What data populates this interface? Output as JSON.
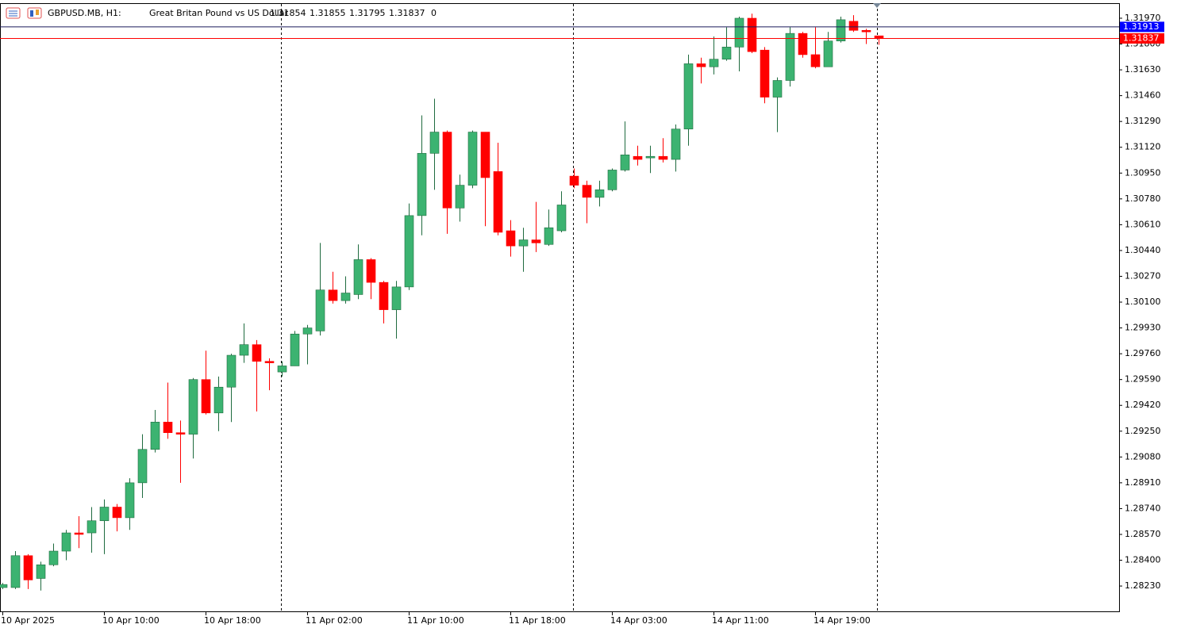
{
  "chart_data": {
    "type": "candlestick",
    "title": "GBPUSD.MB, H1:",
    "subtitle": "Great Britan Pound vs US Dollar",
    "spread": 0,
    "categories": [
      "10 Apr 2025",
      null,
      null,
      null,
      null,
      null,
      null,
      null,
      "10 Apr 10:00",
      null,
      null,
      null,
      null,
      null,
      null,
      null,
      "10 Apr 18:00",
      null,
      null,
      null,
      null,
      null,
      null,
      null,
      "11 Apr 02:00",
      null,
      null,
      null,
      null,
      null,
      null,
      null,
      "11 Apr 10:00",
      null,
      null,
      null,
      null,
      null,
      null,
      null,
      "11 Apr 18:00",
      null,
      null,
      null,
      null,
      null,
      null,
      null,
      "14 Apr 03:00",
      null,
      null,
      null,
      null,
      null,
      null,
      null,
      "14 Apr 11:00",
      null,
      null,
      null,
      null,
      null,
      null,
      null,
      "14 Apr 19:00",
      null,
      null,
      null,
      null,
      null
    ],
    "open": [
      1.2822,
      1.2822,
      1.2843,
      1.2828,
      1.2837,
      1.2846,
      1.2858,
      1.2858,
      1.2866,
      1.2875,
      1.2868,
      1.2891,
      1.2913,
      1.2931,
      1.2924,
      1.2923,
      1.2959,
      1.2937,
      1.2954,
      1.2975,
      1.2982,
      1.2971,
      1.2964,
      1.2968,
      1.2989,
      1.2991,
      1.3018,
      1.3011,
      1.3015,
      1.3038,
      1.3023,
      1.3005,
      1.302,
      1.3067,
      1.3108,
      1.3122,
      1.3072,
      1.3087,
      1.3122,
      1.3096,
      1.3057,
      1.3047,
      1.3051,
      1.3048,
      1.3057,
      1.3093,
      1.3087,
      1.3079,
      1.3084,
      1.3097,
      1.3106,
      1.3105,
      1.3106,
      1.3104,
      1.3124,
      1.3167,
      1.3165,
      1.317,
      1.3178,
      1.3197,
      1.3176,
      1.3145,
      1.3156,
      1.3187,
      1.3173,
      1.3165,
      1.3182,
      1.3195,
      1.3189,
      1.31854
    ],
    "high": [
      1.2825,
      1.2846,
      1.2844,
      1.2839,
      1.2851,
      1.286,
      1.2869,
      1.2875,
      1.288,
      1.2877,
      1.2894,
      1.2923,
      1.2939,
      1.2957,
      1.2932,
      1.296,
      1.2978,
      1.2961,
      1.2976,
      1.2996,
      1.2985,
      1.2973,
      1.2971,
      1.2991,
      1.2995,
      1.3049,
      1.303,
      1.3027,
      1.3048,
      1.3039,
      1.3024,
      1.3024,
      1.3075,
      1.3133,
      1.3144,
      1.3123,
      1.3094,
      1.3123,
      1.3122,
      1.3115,
      1.3064,
      1.3059,
      1.3076,
      1.3071,
      1.3083,
      1.3098,
      1.309,
      1.309,
      1.3098,
      1.3129,
      1.3113,
      1.3113,
      1.3118,
      1.3127,
      1.3173,
      1.3171,
      1.3185,
      1.3191,
      1.3198,
      1.32,
      1.3178,
      1.3158,
      1.3191,
      1.3188,
      1.3191,
      1.3188,
      1.3198,
      1.3199,
      1.319,
      1.31855
    ],
    "low": [
      1.2821,
      1.2821,
      1.2821,
      1.282,
      1.2836,
      1.284,
      1.2848,
      1.2845,
      1.2844,
      1.2859,
      1.286,
      1.2881,
      1.2911,
      1.292,
      1.2891,
      1.2907,
      1.2936,
      1.2925,
      1.2931,
      1.297,
      1.2938,
      1.2952,
      1.2961,
      1.2968,
      1.2969,
      1.2988,
      1.3009,
      1.3009,
      1.3012,
      1.3012,
      1.2996,
      1.2986,
      1.3018,
      1.3054,
      1.3084,
      1.3055,
      1.3063,
      1.3085,
      1.306,
      1.3054,
      1.304,
      1.303,
      1.3043,
      1.3047,
      1.3056,
      1.3085,
      1.3062,
      1.3073,
      1.3083,
      1.3096,
      1.31,
      1.3095,
      1.3102,
      1.3096,
      1.3113,
      1.3154,
      1.316,
      1.3169,
      1.3162,
      1.3174,
      1.3141,
      1.3122,
      1.3152,
      1.3171,
      1.3164,
      1.3165,
      1.3181,
      1.3188,
      1.318,
      1.31795
    ],
    "close": [
      1.2824,
      1.2843,
      1.2827,
      1.2837,
      1.2846,
      1.2858,
      1.2857,
      1.2866,
      1.2875,
      1.2868,
      1.2891,
      1.2913,
      1.2931,
      1.2924,
      1.2923,
      1.2959,
      1.2937,
      1.2954,
      1.2975,
      1.2982,
      1.2971,
      1.297,
      1.2968,
      1.2989,
      1.2993,
      1.3018,
      1.3011,
      1.3016,
      1.3038,
      1.3023,
      1.3005,
      1.302,
      1.3067,
      1.3108,
      1.3122,
      1.3072,
      1.3087,
      1.3122,
      1.3092,
      1.3056,
      1.3047,
      1.3051,
      1.3049,
      1.3059,
      1.3074,
      1.3087,
      1.3079,
      1.3084,
      1.3097,
      1.3107,
      1.3104,
      1.3106,
      1.3104,
      1.3124,
      1.3167,
      1.3165,
      1.317,
      1.3178,
      1.3197,
      1.3175,
      1.3145,
      1.3156,
      1.3187,
      1.3173,
      1.3165,
      1.3182,
      1.3196,
      1.3189,
      1.3188,
      1.31837
    ],
    "up_color": "#3cb371",
    "down_color": "#ff0000",
    "ask": 1.31913,
    "ask_color": "#0000ff",
    "bid_color": "#ff0000",
    "ylim": [
      1.28058,
      1.3209
    ],
    "yticks": [
      {
        "value": 1.3197,
        "label": "1.31970"
      },
      {
        "value": 1.318,
        "label": "1.31800"
      },
      {
        "value": 1.3163,
        "label": "1.31630"
      },
      {
        "value": 1.3146,
        "label": "1.31460"
      },
      {
        "value": 1.3129,
        "label": "1.31290"
      },
      {
        "value": 1.3112,
        "label": "1.31120"
      },
      {
        "value": 1.3095,
        "label": "1.30950"
      },
      {
        "value": 1.3078,
        "label": "1.30780"
      },
      {
        "value": 1.3061,
        "label": "1.30610"
      },
      {
        "value": 1.3044,
        "label": "1.30440"
      },
      {
        "value": 1.3027,
        "label": "1.30270"
      },
      {
        "value": 1.301,
        "label": "1.30100"
      },
      {
        "value": 1.2993,
        "label": "1.29930"
      },
      {
        "value": 1.2976,
        "label": "1.29760"
      },
      {
        "value": 1.2959,
        "label": "1.29590"
      },
      {
        "value": 1.2942,
        "label": "1.29420"
      },
      {
        "value": 1.2925,
        "label": "1.29250"
      },
      {
        "value": 1.2908,
        "label": "1.29080"
      },
      {
        "value": 1.2891,
        "label": "1.28910"
      },
      {
        "value": 1.2874,
        "label": "1.28740"
      },
      {
        "value": 1.2857,
        "label": "1.28570"
      },
      {
        "value": 1.284,
        "label": "1.28400"
      },
      {
        "value": 1.2823,
        "label": "1.28230"
      }
    ],
    "grid": false
  }
}
